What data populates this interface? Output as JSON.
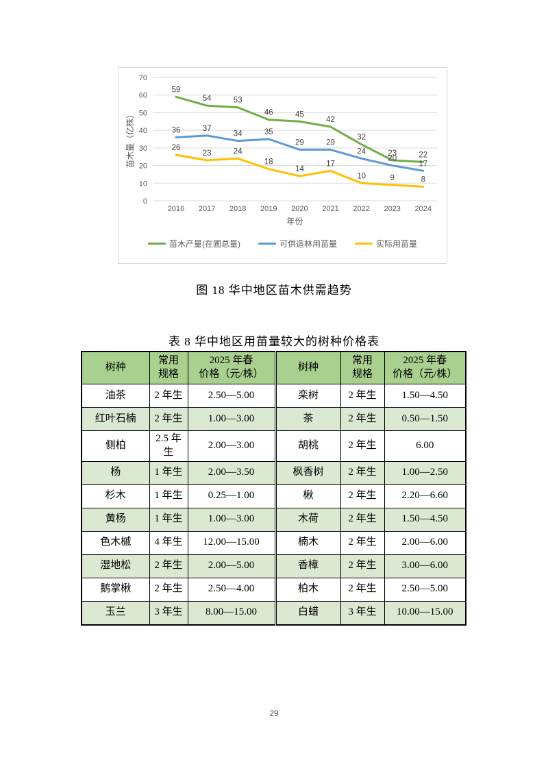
{
  "figure_caption": "图 18 华中地区苗木供需趋势",
  "table_caption": "表 8 华中地区用苗量较大的树种价格表",
  "page_number": "29",
  "chart_data": {
    "type": "line",
    "x": [
      "2016",
      "2017",
      "2018",
      "2019",
      "2020",
      "2021",
      "2022",
      "2023",
      "2024"
    ],
    "xlabel": "年份",
    "ylabel": "苗木量（亿株）",
    "ylim": [
      0,
      70
    ],
    "ytick_step": 10,
    "grid": true,
    "legend_position": "bottom",
    "colors": {
      "grid": "#d9d9d9",
      "label": "#404040",
      "tick": "#595959"
    },
    "series": [
      {
        "name": "苗木产量(在圃总量)",
        "color": "#70AD47",
        "values": [
          59,
          54,
          53,
          46,
          45,
          42,
          32,
          23,
          22
        ]
      },
      {
        "name": "可供造林用苗量",
        "color": "#5B9BD5",
        "values": [
          36,
          37,
          34,
          35,
          29,
          29,
          24,
          20,
          17
        ]
      },
      {
        "name": "实际用苗量",
        "color": "#FFC000",
        "values": [
          26,
          23,
          24,
          18,
          14,
          17,
          10,
          9,
          8
        ]
      }
    ]
  },
  "table": {
    "headers": [
      "树种",
      "常用\n规格",
      "2025 年春\n价格（元/株）",
      "树种",
      "常用\n规格",
      "2025 年春\n价格（元/株）"
    ],
    "rows": [
      [
        "油茶",
        "2 年生",
        "2.50—5.00",
        "栾树",
        "2 年生",
        "1.50—4.50"
      ],
      [
        "红叶石楠",
        "2 年生",
        "1.00—3.00",
        "茶",
        "2 年生",
        "0.50—1.50"
      ],
      [
        "侧柏",
        "2.5 年生",
        "2.00—3.00",
        "胡桃",
        "2 年生",
        "6.00"
      ],
      [
        "杨",
        "1 年生",
        "2.00—3.50",
        "枫香树",
        "2 年生",
        "1.00—2.50"
      ],
      [
        "杉木",
        "1 年生",
        "0.25—1.00",
        "楸",
        "2 年生",
        "2.20—6.60"
      ],
      [
        "黄杨",
        "1 年生",
        "1.00—3.00",
        "木荷",
        "2 年生",
        "1.50—4.50"
      ],
      [
        "色木槭",
        "4 年生",
        "12.00—15.00",
        "楠木",
        "2 年生",
        "2.00—6.00"
      ],
      [
        "湿地松",
        "2 年生",
        "2.00—5.00",
        "香樟",
        "2 年生",
        "3.00—6.00"
      ],
      [
        "鹅掌楸",
        "2 年生",
        "2.50—4.00",
        "柏木",
        "2 年生",
        "2.50—5.00"
      ],
      [
        "玉兰",
        "3 年生",
        "8.00—15.00",
        "白蜡",
        "3 年生",
        "10.00—15.00"
      ]
    ],
    "colors": {
      "header_bg": "#a9d08e",
      "band_bg": "#dce9d2",
      "border": "#000000"
    }
  }
}
